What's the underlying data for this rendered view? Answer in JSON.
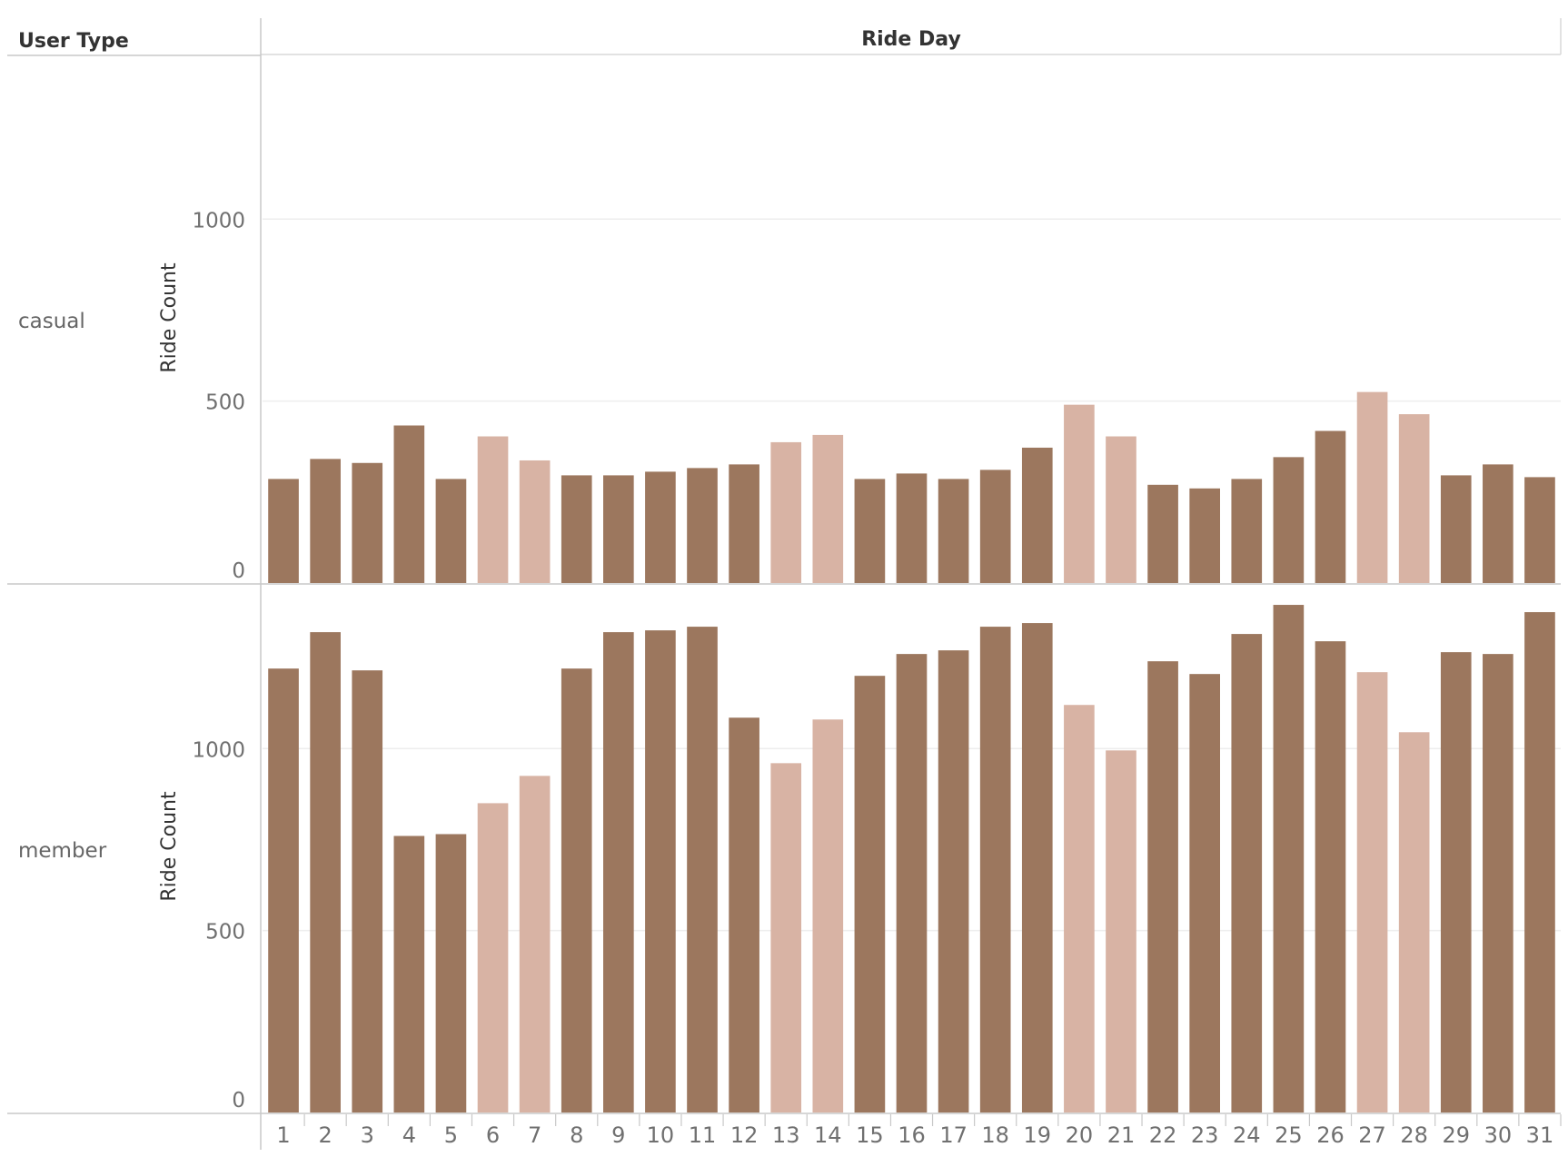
{
  "chart_data": {
    "type": "bar",
    "row_header": "User Type",
    "column_header": "Ride Day",
    "ylabel": "Ride Count",
    "ylim": [
      0,
      1450
    ],
    "yticks": [
      0,
      500,
      1000
    ],
    "grid": true,
    "legend": "none",
    "colors": {
      "weekday": "#9c775e",
      "weekend": "#d8b3a4"
    },
    "categories": [
      "1",
      "2",
      "3",
      "4",
      "5",
      "6",
      "7",
      "8",
      "9",
      "10",
      "11",
      "12",
      "13",
      "14",
      "15",
      "16",
      "17",
      "18",
      "19",
      "20",
      "21",
      "22",
      "23",
      "24",
      "25",
      "26",
      "27",
      "28",
      "29",
      "30",
      "31"
    ],
    "weekend_days": [
      "6",
      "7",
      "13",
      "14",
      "20",
      "21",
      "27",
      "28"
    ],
    "series": [
      {
        "name": "casual",
        "values": [
          286,
          341,
          330,
          433,
          286,
          403,
          337,
          296,
          296,
          306,
          316,
          326,
          387,
          407,
          286,
          301,
          286,
          311,
          372,
          490,
          403,
          270,
          260,
          286,
          346,
          418,
          525,
          464,
          296,
          326,
          291
        ]
      },
      {
        "name": "member",
        "values": [
          1220,
          1320,
          1215,
          760,
          765,
          850,
          925,
          1220,
          1320,
          1325,
          1335,
          1085,
          960,
          1080,
          1200,
          1260,
          1270,
          1335,
          1345,
          1120,
          995,
          1240,
          1205,
          1315,
          1395,
          1295,
          1210,
          1045,
          1265,
          1260,
          1375
        ]
      }
    ]
  }
}
